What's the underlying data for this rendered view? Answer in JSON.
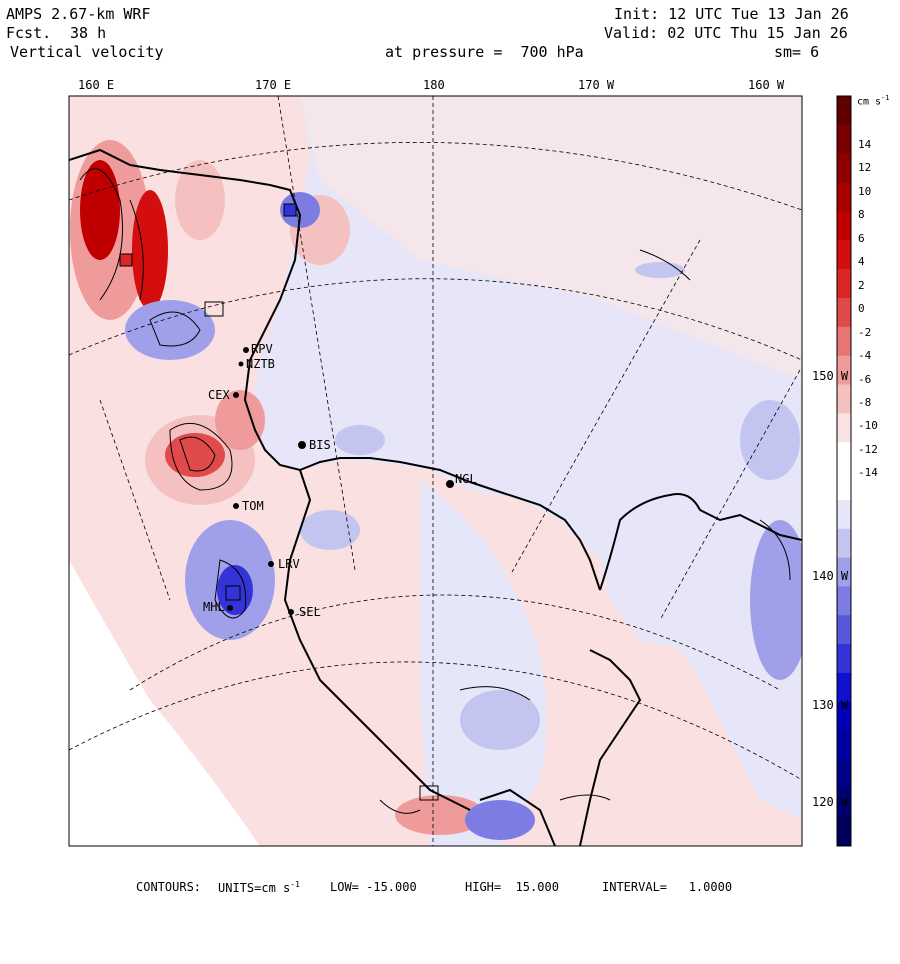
{
  "header": {
    "model": "AMPS 2.67-km WRF",
    "forecast_label": "Fcst.",
    "forecast_value": "38 h",
    "field": "Vertical velocity",
    "init": "Init: 12 UTC Tue 13 Jan 26",
    "valid": "Valid: 02 UTC Thu 15 Jan 26",
    "level": "at pressure =  700 hPa",
    "smoothing": "sm= 6"
  },
  "top_ticks": [
    "160 E",
    "170 E",
    "180",
    "170 W",
    "160 W"
  ],
  "right_ticks": [
    "150 W",
    "140 W",
    "130 W",
    "120 W"
  ],
  "stations": [
    {
      "id": "RPV",
      "label": "RPV"
    },
    {
      "id": "NZTB",
      "label": "NZTB"
    },
    {
      "id": "CEX",
      "label": "CEX"
    },
    {
      "id": "BIS",
      "label": "BIS"
    },
    {
      "id": "NGL",
      "label": "NGL"
    },
    {
      "id": "TOM",
      "label": "TOM"
    },
    {
      "id": "LRV",
      "label": "LRV"
    },
    {
      "id": "SEL",
      "label": "SEL"
    },
    {
      "id": "MHL",
      "label": "MHL"
    }
  ],
  "colorbar": {
    "units": "cm s",
    "units_exp": "-1",
    "labels": [
      "14",
      "12",
      "10",
      "8",
      "6",
      "4",
      "2",
      "0",
      "-2",
      "-4",
      "-6",
      "-8",
      "-10",
      "-12",
      "-14"
    ],
    "positive_colors": [
      "#fbe2e2",
      "#f5c0c0",
      "#ef9b9b",
      "#e87474",
      "#e04a4a",
      "#dc2626",
      "#d40e0e",
      "#c00000",
      "#a80000",
      "#900000",
      "#780000",
      "#600000"
    ],
    "negative_colors": [
      "#e6e6f9",
      "#c4c4f1",
      "#a0a0ea",
      "#7c7ce3",
      "#5858dd",
      "#3333d8",
      "#1010d0",
      "#0000b8",
      "#0000a0",
      "#000088",
      "#000070",
      "#00005a"
    ],
    "zero_color": "#ffffff"
  },
  "colors": {
    "ocean_background": "#e6e6f8",
    "land_pink": "#fae0e0",
    "coast": "#000000"
  },
  "footer": {
    "contours": "CONTOURS:",
    "units_text": "UNITS=cm s",
    "units_exp": "-1",
    "low": "LOW= -15.000",
    "high": "HIGH=  15.000",
    "interval": "INTERVAL=   1.0000"
  }
}
